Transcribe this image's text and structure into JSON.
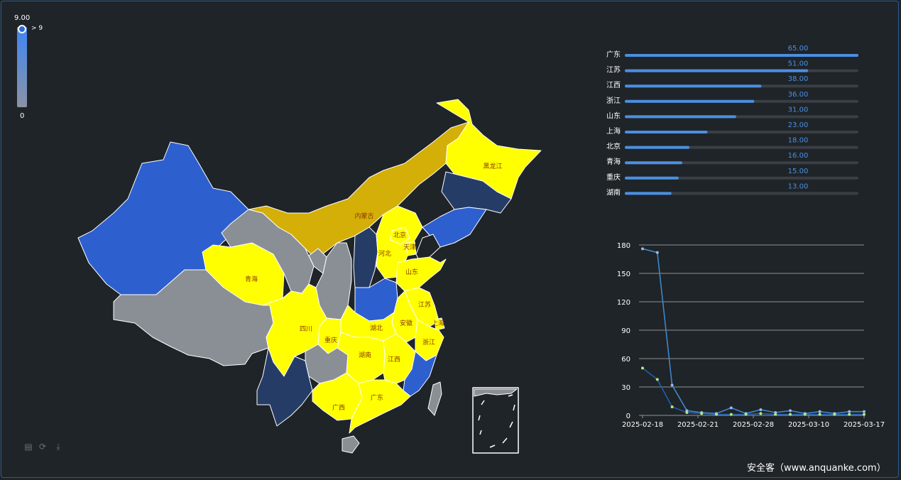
{
  "visual_map": {
    "max_label": "9.00",
    "min_label": "0",
    "handle_label": "> 9",
    "colors": [
      "#3f86f5",
      "#8a93a5"
    ]
  },
  "map": {
    "region_labels": [
      "黑龙江",
      "内蒙古",
      "北京",
      "天津",
      "河北",
      "山东",
      "青海",
      "江苏",
      "安徽",
      "上海",
      "湖北",
      "四川",
      "重庆",
      "浙江",
      "湖南",
      "江西",
      "广西",
      "广东"
    ],
    "colors": {
      "high": "#ffff00",
      "mid": "#d4af07",
      "blue": "#2d5fcf",
      "dark": "#253d66",
      "none": "#8a8f96",
      "label": "#8b3a00"
    }
  },
  "toolbox": {
    "icons": [
      "data-view-icon",
      "restore-icon",
      "save-image-icon"
    ]
  },
  "chart_data": [
    {
      "type": "bar",
      "categories": [
        "广东",
        "江苏",
        "江西",
        "浙江",
        "山东",
        "上海",
        "北京",
        "青海",
        "重庆",
        "湖南"
      ],
      "values": [
        65.0,
        51.0,
        38.0,
        36.0,
        31.0,
        23.0,
        18.0,
        16.0,
        15.0,
        13.0
      ],
      "value_labels": [
        "65.00",
        "51.00",
        "38.00",
        "36.00",
        "31.00",
        "23.00",
        "18.00",
        "16.00",
        "15.00",
        "13.00"
      ],
      "orientation": "horizontal",
      "xlim": [
        0,
        65
      ],
      "colors": {
        "bar": "#4a90e2",
        "track": "#3a3f45",
        "label": "#4a90e2"
      }
    },
    {
      "type": "line",
      "x_ticks": [
        "2025-02-18",
        "2025-02-21",
        "2025-02-28",
        "2025-03-10",
        "2025-03-17"
      ],
      "y_ticks": [
        "0",
        "30",
        "60",
        "90",
        "120",
        "150",
        "180"
      ],
      "ylim": [
        0,
        180
      ],
      "grid": true,
      "series": [
        {
          "values": [
            176,
            172,
            32,
            5,
            3,
            2,
            8,
            2,
            6,
            3,
            5,
            2,
            4,
            2,
            4,
            4
          ],
          "color": "#3f86c8",
          "point_color": "#9ab8e8"
        },
        {
          "values": [
            50,
            38,
            9,
            3,
            2,
            1,
            1,
            1,
            2,
            1,
            1,
            1,
            1,
            1,
            1,
            1
          ],
          "color": "#1f5faa",
          "point_color": "#b8e878"
        }
      ]
    }
  ],
  "watermark": "安全客（www.anquanke.com）"
}
